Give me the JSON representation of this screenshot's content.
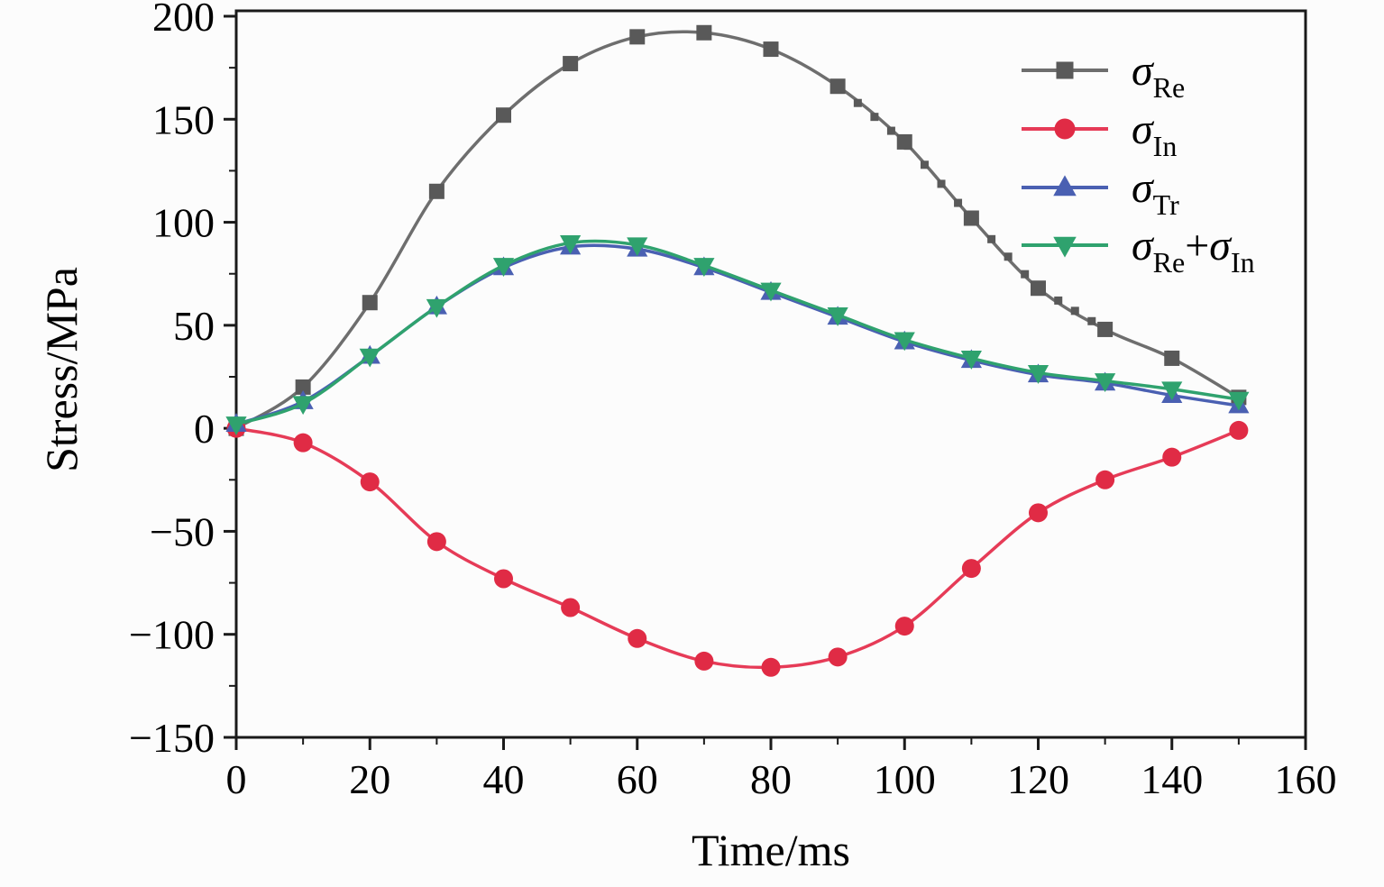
{
  "chart_data": {
    "type": "line",
    "title": "",
    "xlabel": "Time/ms",
    "ylabel": "Stress/MPa",
    "xlim": [
      0,
      160
    ],
    "ylim": [
      -150,
      200
    ],
    "grid": false,
    "legend_position": "top-right",
    "xticks": {
      "major": [
        0,
        20,
        40,
        60,
        80,
        100,
        120,
        140,
        160
      ],
      "labels": [
        "0",
        "20",
        "40",
        "60",
        "80",
        "100",
        "120",
        "140",
        "160"
      ],
      "minor_step": 10
    },
    "yticks": {
      "major": [
        -150,
        -100,
        -50,
        0,
        50,
        100,
        150,
        200
      ],
      "labels": [
        "−150",
        "−100",
        "−50",
        "0",
        "50",
        "100",
        "150",
        "200"
      ],
      "minor_step": 25
    },
    "x": [
      0,
      10,
      20,
      30,
      40,
      50,
      60,
      70,
      80,
      90,
      100,
      110,
      120,
      130,
      140,
      150
    ],
    "series": [
      {
        "name": "sigma-Re",
        "legend_parts": [
          [
            "σ",
            "Re"
          ]
        ],
        "color": "#6e6e6e",
        "marker": "square",
        "marker_color": "#595959",
        "values": [
          0,
          20,
          61,
          115,
          152,
          177,
          190,
          192,
          184,
          166,
          139,
          102,
          68,
          48,
          34,
          15
        ],
        "dense_markers": {
          "from": 93,
          "to": 128,
          "step": 2.5
        }
      },
      {
        "name": "sigma-In",
        "legend_parts": [
          [
            "σ",
            "In"
          ]
        ],
        "color": "#e63b57",
        "marker": "circle",
        "marker_color": "#e02b45",
        "values": [
          0,
          -7,
          -26,
          -55,
          -73,
          -87,
          -102,
          -113,
          -116,
          -111,
          -96,
          -68,
          -41,
          -25,
          -14,
          -1
        ]
      },
      {
        "name": "sigma-Tr",
        "legend_parts": [
          [
            "σ",
            "Tr"
          ]
        ],
        "color": "#4a60b2",
        "marker": "triangle-up",
        "marker_color": "#4a60b2",
        "values": [
          2,
          13,
          35,
          59,
          78,
          88,
          87,
          78,
          66,
          54,
          42,
          33,
          26,
          22,
          16,
          11
        ]
      },
      {
        "name": "sigma-Re-plus-sigma-In",
        "legend_parts": [
          [
            "σ",
            "Re"
          ],
          [
            "+",
            ""
          ],
          [
            "σ",
            "In"
          ]
        ],
        "color": "#2fa26e",
        "marker": "triangle-down",
        "marker_color": "#2fa26e",
        "values": [
          2,
          12,
          35,
          59,
          79,
          90,
          89,
          79,
          67,
          55,
          43,
          34,
          27,
          23,
          19,
          14
        ]
      }
    ]
  }
}
